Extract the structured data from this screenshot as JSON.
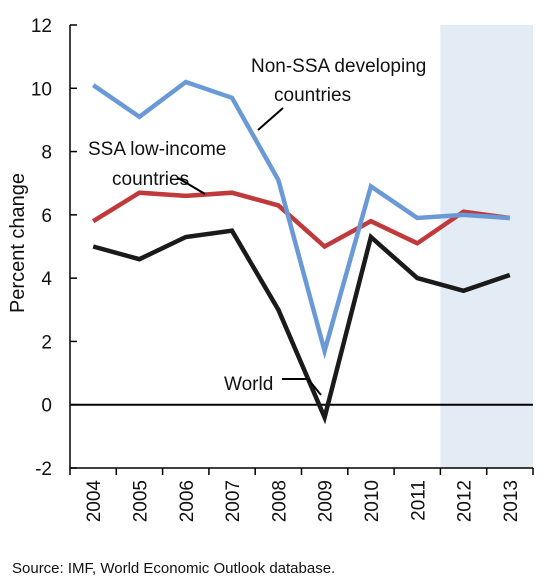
{
  "chart_data": {
    "type": "line",
    "x": [
      "2004",
      "2005",
      "2006",
      "2007",
      "2008",
      "2009",
      "2010",
      "2011",
      "2012",
      "2013"
    ],
    "series": [
      {
        "name": "Non-SSA developing countries",
        "color": "#6a9ad6",
        "values": [
          10.1,
          9.1,
          10.2,
          9.7,
          7.1,
          1.7,
          6.9,
          5.9,
          6.0,
          5.9
        ]
      },
      {
        "name": "SSA low-income countries",
        "color": "#c0393b",
        "values": [
          5.8,
          6.7,
          6.6,
          6.7,
          6.3,
          5.0,
          5.8,
          5.1,
          6.1,
          5.9
        ]
      },
      {
        "name": "World",
        "color": "#1a1a1a",
        "values": [
          5.0,
          4.6,
          5.3,
          5.5,
          3.0,
          -0.4,
          5.3,
          4.0,
          3.6,
          4.1
        ]
      }
    ],
    "annotations": [
      {
        "text": [
          "Non-SSA developing",
          "countries"
        ],
        "series": 0
      },
      {
        "text": [
          "SSA low-income",
          "countries"
        ],
        "series": 1
      },
      {
        "text": [
          "World"
        ],
        "series": 2
      }
    ],
    "ylabel": "Percent change",
    "ylim": [
      -2,
      12
    ],
    "yticks": [
      -2,
      0,
      2,
      4,
      6,
      8,
      10,
      12
    ],
    "xlabel": "",
    "shaded_region": {
      "from": "2012",
      "to": "2013",
      "color": "#e3ebf5",
      "meaning": "projection"
    },
    "zero_line": true,
    "grid": false
  },
  "source": "Source: IMF, World Economic Outlook database."
}
